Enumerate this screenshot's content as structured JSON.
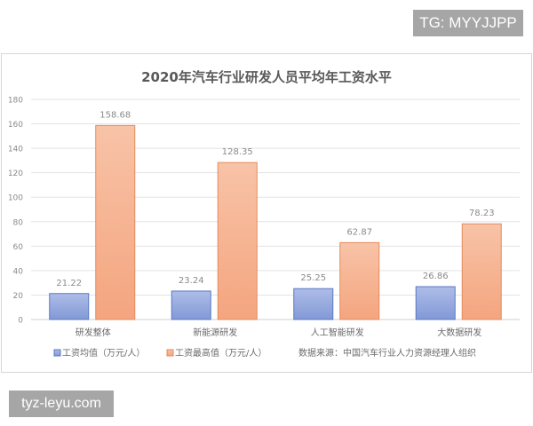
{
  "watermark_top": "TG: MYYJJPP",
  "watermark_bottom": "tyz-leyu.com",
  "colors": {
    "avg": "#8ea3dc",
    "avg_border": "#5a78c4",
    "max": "#f5ab86",
    "max_border": "#e58a5c"
  },
  "chart_data": {
    "type": "bar",
    "title": "2020年汽车行业研发人员平均年工资水平",
    "categories": [
      "研发整体",
      "新能源研发",
      "人工智能研发",
      "大数据研发"
    ],
    "series": [
      {
        "name": "工资均值（万元/人）",
        "values": [
          21.22,
          23.24,
          25.25,
          26.86
        ],
        "labels": [
          "21.22",
          "23.24",
          "25.25",
          "26.86"
        ]
      },
      {
        "name": "工资最高值（万元/人）",
        "values": [
          158.68,
          128.35,
          62.87,
          78.23
        ],
        "labels": [
          "158.68",
          "128.35",
          "62.87",
          "78.23"
        ]
      }
    ],
    "ylim": [
      0,
      180
    ],
    "yticks": [
      "0",
      "20",
      "40",
      "60",
      "80",
      "100",
      "120",
      "140",
      "160",
      "180"
    ],
    "grid": true,
    "legend": "bottom",
    "source_note": "数据来源：中国汽车行业人力资源经理人组织"
  }
}
